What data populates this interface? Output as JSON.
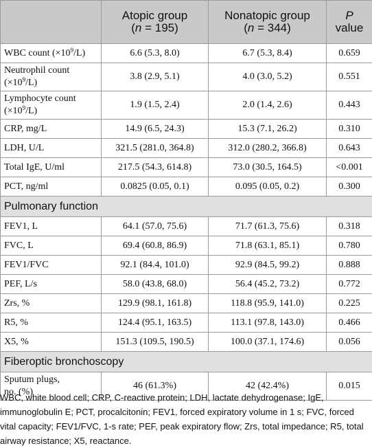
{
  "headers": {
    "col1": "",
    "col2_line1": "Atopic group",
    "col2_n": "195",
    "col3_line1": "Nonatopic group",
    "col3_n": "344",
    "col4_p": "P",
    "col4_value": "value",
    "n_symbol": "n",
    "equals": " = "
  },
  "rows": {
    "wbc": {
      "label_pre": "WBC count (×10",
      "label_sup": "9",
      "label_post": "/L)",
      "atopic": "6.6 (5.3, 8.0)",
      "nonatopic": "6.7 (5.3, 8.4)",
      "p": "0.659"
    },
    "neut": {
      "label_line1": "Neutrophil count",
      "label_pre": "(×10",
      "label_sup": "9",
      "label_post": "/L)",
      "atopic": "3.8 (2.9, 5.1)",
      "nonatopic": "4.0 (3.0, 5.2)",
      "p": "0.551"
    },
    "lymph": {
      "label_line1": "Lymphocyte count",
      "label_pre": "(×10",
      "label_sup": "9",
      "label_post": "/L)",
      "atopic": "1.9 (1.5, 2.4)",
      "nonatopic": "2.0 (1.4, 2.6)",
      "p": "0.443"
    },
    "crp": {
      "label": "CRP, mg/L",
      "atopic": "14.9 (6.5, 24.3)",
      "nonatopic": "15.3 (7.1, 26.2)",
      "p": "0.310"
    },
    "ldh": {
      "label": "LDH, U/L",
      "atopic": "321.5 (281.0, 364.8)",
      "nonatopic": "312.0 (280.2, 366.8)",
      "p": "0.643"
    },
    "ige": {
      "label": "Total IgE, U/ml",
      "atopic": "217.5 (54.3, 614.8)",
      "nonatopic": "73.0 (30.5, 164.5)",
      "p": "<0.001"
    },
    "pct": {
      "label": "PCT, ng/ml",
      "atopic": "0.0825 (0.05, 0.1)",
      "nonatopic": "0.095 (0.05, 0.2)",
      "p": "0.300"
    },
    "fev1": {
      "label": "FEV1, L",
      "atopic": "64.1 (57.0, 75.6)",
      "nonatopic": "71.7 (61.3, 75.6)",
      "p": "0.318"
    },
    "fvc": {
      "label": "FVC, L",
      "atopic": "69.4 (60.8, 86.9)",
      "nonatopic": "71.8 (63.1, 85.1)",
      "p": "0.780"
    },
    "ratio": {
      "label": "FEV1/FVC",
      "atopic": "92.1 (84.4, 101.0)",
      "nonatopic": "92.9 (84.5, 99.2)",
      "p": "0.888"
    },
    "pef": {
      "label": "PEF, L/s",
      "atopic": "58.0 (43.8, 68.0)",
      "nonatopic": "56.4 (45.2, 73.2)",
      "p": "0.772"
    },
    "zrs": {
      "label": "Zrs, %",
      "atopic": "129.9 (98.1, 161.8)",
      "nonatopic": "118.8 (95.9, 141.0)",
      "p": "0.225"
    },
    "r5": {
      "label": "R5, %",
      "atopic": "124.4 (95.1, 163.5)",
      "nonatopic": "113.1 (97.8, 143.0)",
      "p": "0.466"
    },
    "x5": {
      "label": "X5, %",
      "atopic": "151.3 (109.5, 190.5)",
      "nonatopic": "100.0 (37.1, 174.6)",
      "p": "0.056"
    },
    "sputum": {
      "label_line1": "Sputum plugs,",
      "label_line2": "no. (%)",
      "atopic": "46 (61.3%)",
      "nonatopic": "42 (42.4%)",
      "p": "0.015"
    }
  },
  "sections": {
    "pulmonary": "Pulmonary function",
    "fiberoptic": "Fiberoptic bronchoscopy"
  },
  "footnote": "WBC, white blood cell; CRP, C-reactive protein; LDH, lactate dehydrogenase; IgE, immunoglobulin E; PCT, procalcitonin; FEV1, forced expiratory volume in 1 s; FVC, forced vital capacity; FEV1/FVC, 1-s rate; PEF, peak expiratory flow; Zrs, total impedance; R5, total airway resistance; X5, reactance."
}
